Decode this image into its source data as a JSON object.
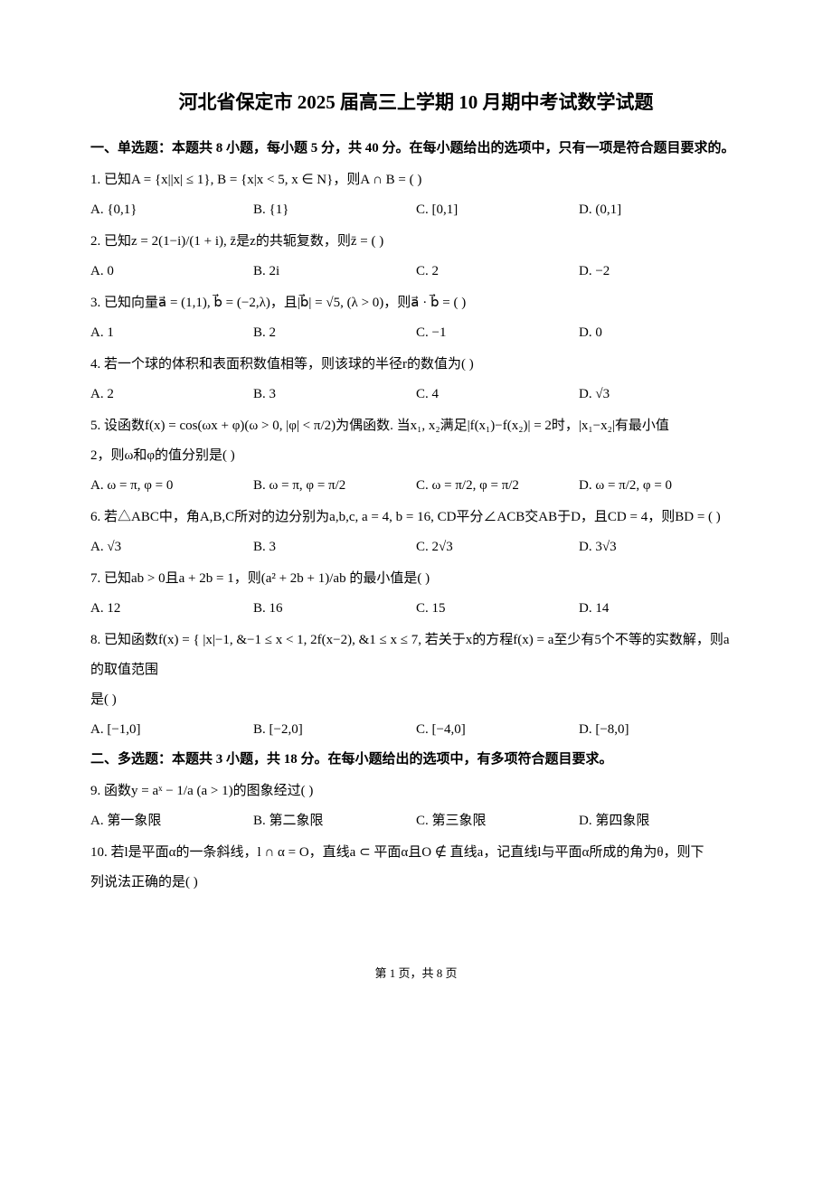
{
  "title": "河北省保定市 2025 届高三上学期 10 月期中考试数学试题",
  "section1_head": "一、单选题：本题共 8 小题，每小题 5 分，共 40 分。在每小题给出的选项中，只有一项是符合题目要求的。",
  "q1": "1. 已知A = {x||x| ≤ 1}, B = {x|x < 5, x ∈ N}，则A ∩ B = (    )",
  "q1_opts": [
    "A. {0,1}",
    "B. {1}",
    "C. [0,1]",
    "D. (0,1]"
  ],
  "q2": "2. 已知z = 2(1−i)/(1 + i), z̄是z的共轭复数，则z̄ = (    )",
  "q2_opts": [
    "A. 0",
    "B. 2i",
    "C. 2",
    "D. −2"
  ],
  "q3": "3. 已知向量a⃗ = (1,1), b⃗ = (−2,λ)，且|b⃗| = √5, (λ > 0)，则a⃗ · b⃗ = (    )",
  "q3_opts": [
    "A. 1",
    "B. 2",
    "C. −1",
    "D. 0"
  ],
  "q4": "4. 若一个球的体积和表面积数值相等，则该球的半径r的数值为(    )",
  "q4_opts": [
    "A. 2",
    "B. 3",
    "C. 4",
    "D. √3"
  ],
  "q5": "5. 设函数f(x) = cos(ωx + φ)(ω > 0, |φ| < π/2)为偶函数. 当x₁, x₂满足|f(x₁)−f(x₂)| = 2时，|x₁−x₂|有最小值",
  "q5_line2": "2，则ω和φ的值分别是(    )",
  "q5_opts": [
    "A. ω = π, φ = 0",
    "B. ω = π, φ = π/2",
    "C. ω = π/2, φ = π/2",
    "D. ω = π/2, φ = 0"
  ],
  "q6": "6. 若△ABC中，角A,B,C所对的边分别为a,b,c, a = 4, b = 16, CD平分∠ACB交AB于D，且CD = 4，则BD = (    )",
  "q6_opts": [
    "A. √3",
    "B. 3",
    "C. 2√3",
    "D. 3√3"
  ],
  "q7": "7. 已知ab > 0且a + 2b = 1，则(a² + 2b + 1)/ab 的最小值是(    )",
  "q7_opts": [
    "A. 12",
    "B. 16",
    "C. 15",
    "D. 14"
  ],
  "q8": "8. 已知函数f(x) = { |x|−1, &−1 ≤ x < 1,  2f(x−2), &1 ≤ x ≤ 7, 若关于x的方程f(x) = a至少有5个不等的实数解，则a的取值范围",
  "q8_line2": "是(    )",
  "q8_opts": [
    "A. [−1,0]",
    "B. [−2,0]",
    "C. [−4,0]",
    "D. [−8,0]"
  ],
  "section2_head": "二、多选题：本题共 3 小题，共 18 分。在每小题给出的选项中，有多项符合题目要求。",
  "q9": "9. 函数y = aˣ − 1/a (a > 1)的图象经过(    )",
  "q9_opts": [
    "A. 第一象限",
    "B. 第二象限",
    "C. 第三象限",
    "D. 第四象限"
  ],
  "q10": "10. 若l是平面α的一条斜线，l ∩ α = O，直线a ⊂ 平面α且O ∉ 直线a，记直线l与平面α所成的角为θ，则下",
  "q10_line2": "列说法正确的是(    )",
  "footer": "第 1 页，共 8 页"
}
